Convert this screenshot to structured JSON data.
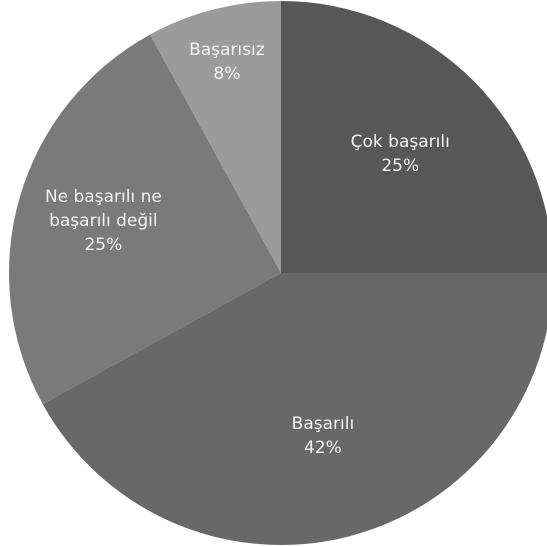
{
  "chart_data": {
    "type": "pie",
    "categories": [
      "Çok başarılı",
      "Başarılı",
      "Ne başarılı ne başarılı değil",
      "Başarısız"
    ],
    "values": [
      25,
      42,
      25,
      8
    ],
    "value_labels": [
      "25%",
      "42%",
      "25%",
      "8%"
    ],
    "colors": [
      "#575757",
      "#686868",
      "#7a7a7a",
      "#9b9b9b"
    ]
  }
}
